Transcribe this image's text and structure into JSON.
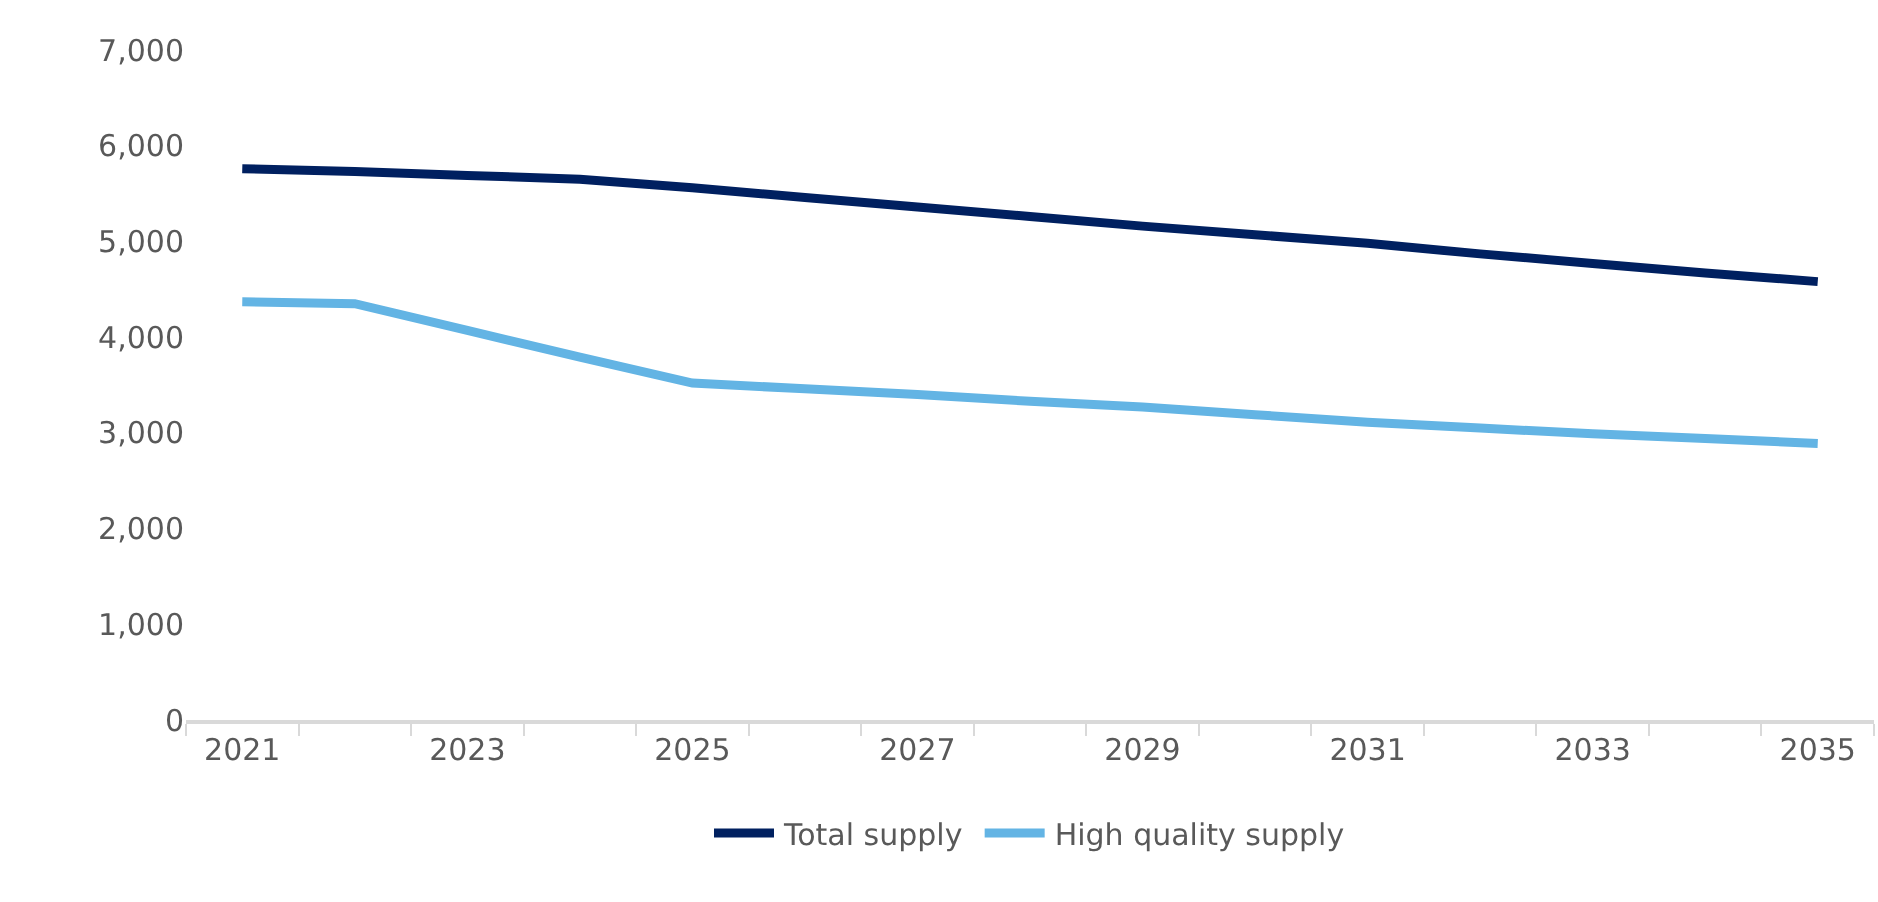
{
  "chart_data": {
    "type": "line",
    "categories": [
      "2021",
      null,
      "2023",
      null,
      "2025",
      null,
      "2027",
      null,
      "2029",
      null,
      "2031",
      null,
      "2033",
      null,
      "2035"
    ],
    "series": [
      {
        "name": "Total supply",
        "color": "#002060",
        "values": [
          5760,
          5730,
          5690,
          5650,
          5560,
          5460,
          5360,
          5260,
          5160,
          5070,
          4980,
          4870,
          4770,
          4670,
          4580
        ]
      },
      {
        "name": "High quality supply",
        "color": "#63b4e4",
        "values": [
          4370,
          4350,
          4070,
          3790,
          3520,
          3460,
          3400,
          3330,
          3270,
          3190,
          3110,
          3050,
          2990,
          2940,
          2890
        ]
      }
    ],
    "ylim": [
      0,
      7000
    ],
    "yticks": [
      {
        "value": 0,
        "label": "0"
      },
      {
        "value": 1000,
        "label": "1,000"
      },
      {
        "value": 2000,
        "label": "2,000"
      },
      {
        "value": 3000,
        "label": "3,000"
      },
      {
        "value": 4000,
        "label": "4,000"
      },
      {
        "value": 5000,
        "label": "5,000"
      },
      {
        "value": 6000,
        "label": "6,000"
      },
      {
        "value": 7000,
        "label": "7,000"
      }
    ],
    "grid": false,
    "legend": "bottom",
    "marker": "none",
    "line_style": "solid"
  }
}
